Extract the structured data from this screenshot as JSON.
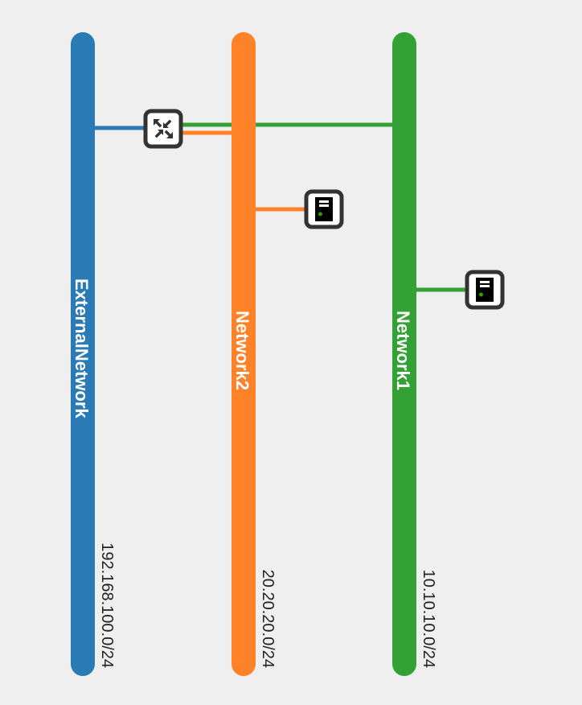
{
  "networks": [
    {
      "name": "ExternalNetwork",
      "cidr": "192.168.100.0/24",
      "color": "#2a7ab6"
    },
    {
      "name": "Network2",
      "cidr": "20.20.20.0/24",
      "color": "#ff8128"
    },
    {
      "name": "Network1",
      "cidr": "10.10.10.0/24",
      "color": "#33a136"
    }
  ],
  "nodes": [
    {
      "type": "router",
      "icon": "router-icon",
      "connected_networks": [
        "ExternalNetwork",
        "Network2",
        "Network1"
      ]
    },
    {
      "type": "instance",
      "icon": "server-icon",
      "connected_networks": [
        "Network2"
      ]
    },
    {
      "type": "instance",
      "icon": "server-icon",
      "connected_networks": [
        "Network1"
      ]
    }
  ],
  "colors": {
    "background": "#efefef",
    "node_border": "#333333",
    "led": "#27a300"
  }
}
